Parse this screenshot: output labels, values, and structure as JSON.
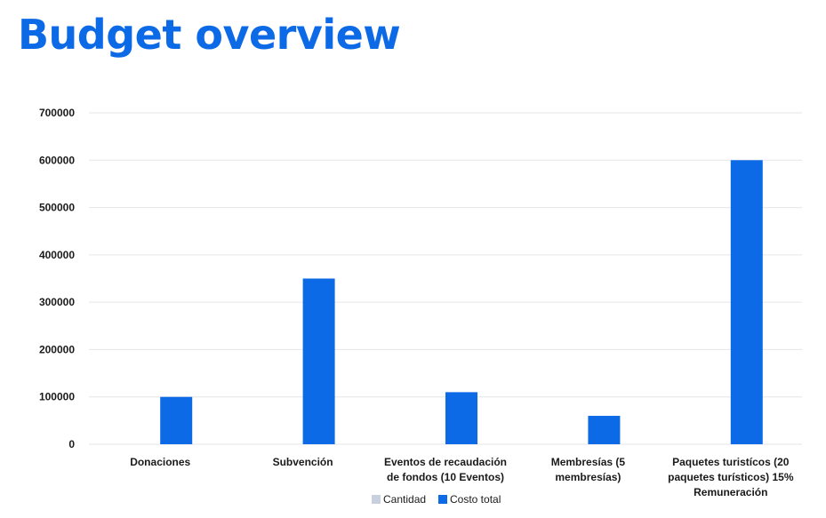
{
  "header": {
    "title": "Budget overview"
  },
  "colors": {
    "title": "#0d6ae6",
    "grid": "#e6e6e6",
    "axis_text": "#1a1a1a"
  },
  "chart_data": {
    "type": "bar",
    "categories": [
      [
        "Donaciones"
      ],
      [
        "Subvención"
      ],
      [
        "Eventos de recaudación",
        "de fondos (10 Eventos)"
      ],
      [
        "Membresías (5",
        "membresías)"
      ],
      [
        "Paquetes turistícos (20",
        "paquetes turísticos) 15%",
        "Remuneración"
      ]
    ],
    "series": [
      {
        "name": "Cantidad",
        "values": [
          0,
          0,
          0,
          0,
          0
        ],
        "color": "#c8d0e0"
      },
      {
        "name": "Costo total",
        "values": [
          100000,
          350000,
          110000,
          60000,
          600000
        ],
        "color": "#0d6ae6"
      }
    ],
    "ylim": [
      0,
      700000
    ],
    "yticks": [
      "0",
      "100000",
      "200000",
      "300000",
      "400000",
      "500000",
      "600000",
      "700000"
    ],
    "grid": true,
    "legend_position": "bottom-center"
  }
}
